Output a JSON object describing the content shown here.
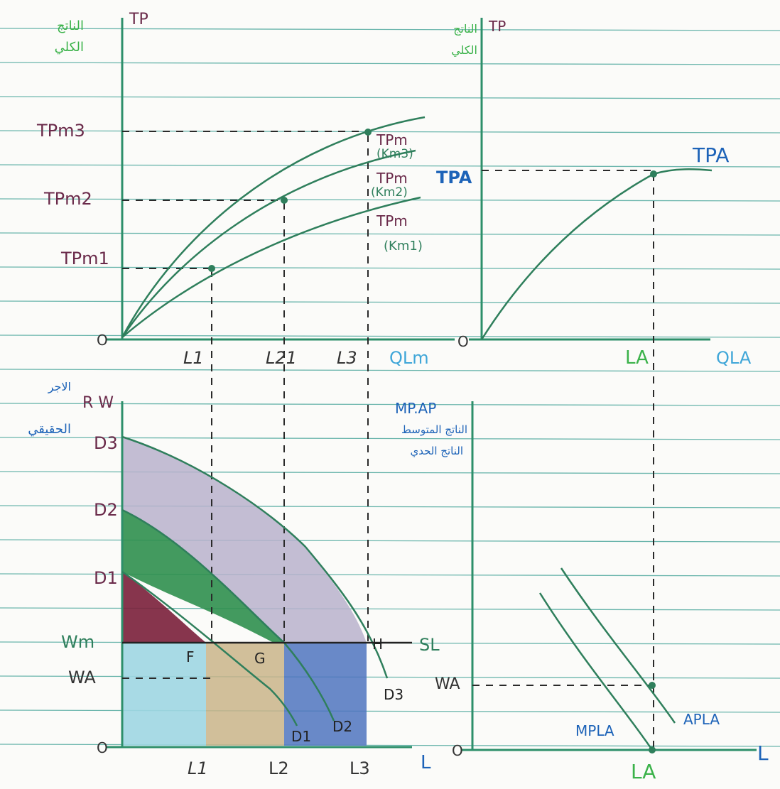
{
  "colors": {
    "paper": "#fbfbf9",
    "rule": "#3a9e93",
    "axis": "#2d8f6a",
    "curve": "#2f7f5c",
    "ink_purple": "#6a2a4a",
    "ink_blue": "#1d63b8",
    "ink_green_label": "#3bb24a",
    "ink_cyan": "#3fa6d8",
    "ink_dark": "#333333",
    "fill_purple_grey": "#b9b2cc",
    "fill_green": "#2f8f4e",
    "fill_maroon": "#7a1f3a",
    "fill_cyan": "#9fd6e2",
    "fill_tan": "#c9b48a",
    "fill_blue": "#4f74c0"
  },
  "top_left": {
    "y_axis_label": "TP",
    "y_axis_label_ar_1": "الناتج",
    "y_axis_label_ar_2": "الكلي",
    "y_ticks": [
      "TPm3",
      "TPm2",
      "TPm1"
    ],
    "origin": "O",
    "x_ticks": [
      "L1",
      "L21",
      "L3"
    ],
    "x_axis_label": "QLm",
    "curves": [
      {
        "label_1": "TPm",
        "label_2": "(Km3)"
      },
      {
        "label_1": "TPm",
        "label_2": "(Km2)"
      },
      {
        "label_1": "TPm",
        "label_2": "(Km1)"
      }
    ]
  },
  "top_right": {
    "y_axis_label": "TP",
    "y_axis_label_ar_1": "الناتج",
    "y_axis_label_ar_2": "الكلي",
    "y_tick": "TPA",
    "curve_label": "TPA",
    "origin": "O",
    "x_tick": "LA",
    "x_axis_label": "QLA"
  },
  "bottom_left": {
    "y_axis_label": "R W",
    "y_axis_label_ar_1": "الاجر",
    "y_axis_label_ar_2": "الحقيقي",
    "y_ticks": [
      "D3",
      "D2",
      "D1",
      "Wm",
      "WA"
    ],
    "origin": "O",
    "x_ticks": [
      "L1",
      "L2",
      "L3"
    ],
    "x_axis_label": "L",
    "points": [
      "F",
      "G",
      "H"
    ],
    "supply_label": "SL",
    "demand_labels": [
      "D3",
      "D1",
      "D2"
    ]
  },
  "bottom_right": {
    "y_axis_label": "MP.AP",
    "y_axis_label_ar_1": "الناتج المتوسط",
    "y_axis_label_ar_2": "الناتج الحدي",
    "y_tick": "WA",
    "origin": "O",
    "x_tick": "LA",
    "x_axis_label": "L",
    "curve_labels": [
      "MPLA",
      "APLA"
    ]
  }
}
